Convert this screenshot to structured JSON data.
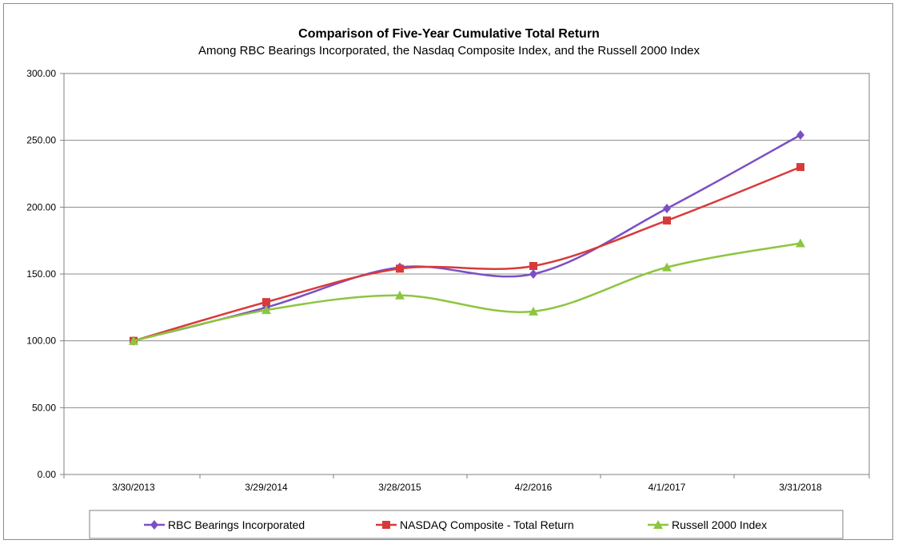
{
  "chart_data": {
    "type": "line",
    "title": "Comparison of Five-Year Cumulative Total Return",
    "subtitle": "Among RBC Bearings Incorporated, the Nasdaq Composite Index, and the Russell 2000 Index",
    "xlabel": "",
    "ylabel": "",
    "categories": [
      "3/30/2013",
      "3/29/2014",
      "3/28/2015",
      "4/2/2016",
      "4/1/2017",
      "3/31/2018"
    ],
    "ylim": [
      0,
      300
    ],
    "yticks": [
      "0.00",
      "50.00",
      "100.00",
      "150.00",
      "200.00",
      "250.00",
      "300.00"
    ],
    "grid": true,
    "legend": "bottom",
    "series": [
      {
        "name": "RBC Bearings Incorporated",
        "color": "#7b4fc4",
        "marker": "diamond",
        "values": [
          100,
          125,
          155,
          150,
          199,
          254
        ]
      },
      {
        "name": "NASDAQ Composite - Total Return",
        "color": "#d83a3a",
        "marker": "square",
        "values": [
          100,
          129,
          154,
          156,
          190,
          230
        ]
      },
      {
        "name": "Russell 2000 Index",
        "color": "#8cc63f",
        "marker": "triangle",
        "values": [
          100,
          123,
          134,
          122,
          155,
          173
        ]
      }
    ]
  }
}
